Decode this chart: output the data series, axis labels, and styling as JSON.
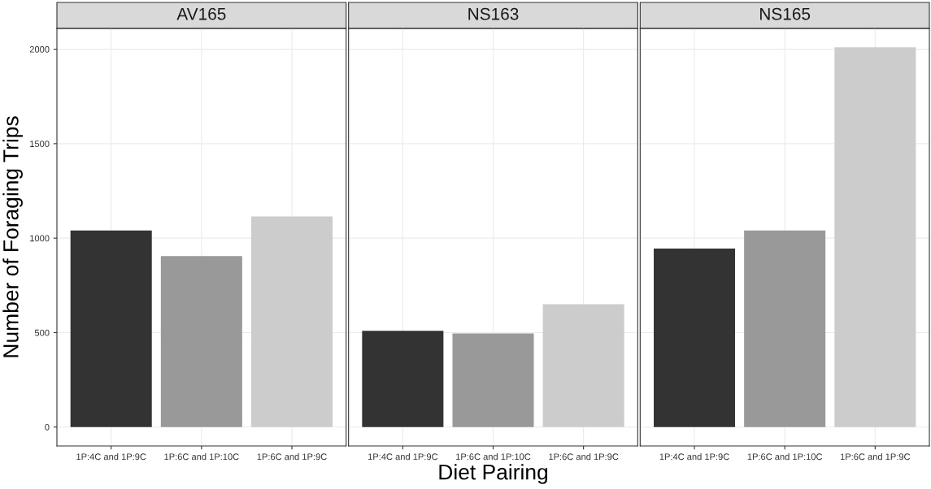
{
  "chart_data": [
    {
      "type": "bar",
      "title": "AV165",
      "ylabel": "Number of Foraging Trips",
      "categories": [
        "1P:4C and 1P:9C",
        "1P:6C and 1P:10C",
        "1P:6C and 1P:9C"
      ],
      "values": [
        1040,
        905,
        1115
      ],
      "colors": [
        "#333333",
        "#999999",
        "#cccccc"
      ],
      "ylim": [
        -100,
        2110
      ],
      "yticks": [
        0,
        500,
        1000,
        1500,
        2000
      ],
      "grid": true
    },
    {
      "type": "bar",
      "title": "NS163",
      "xlabel": "Diet Pairing",
      "categories": [
        "1P:4C and 1P:9C",
        "1P:6C and 1P:10C",
        "1P:6C and 1P:9C"
      ],
      "values": [
        510,
        495,
        650
      ],
      "colors": [
        "#333333",
        "#999999",
        "#cccccc"
      ],
      "ylim": [
        -100,
        2110
      ],
      "yticks": [
        0,
        500,
        1000,
        1500,
        2000
      ],
      "grid": true,
      "tick_labels": "x"
    },
    {
      "type": "bar",
      "title": "NS165",
      "categories": [
        "1P:4C and 1P:9C",
        "1P:6C and 1P:10C",
        "1P:6C and 1P:9C"
      ],
      "values": [
        945,
        1040,
        2010
      ],
      "colors": [
        "#333333",
        "#999999",
        "#cccccc"
      ],
      "ylim": [
        -100,
        2110
      ],
      "yticks": [
        0,
        500,
        1000,
        1500,
        2000
      ],
      "grid": true,
      "tick_labels": "x"
    }
  ]
}
